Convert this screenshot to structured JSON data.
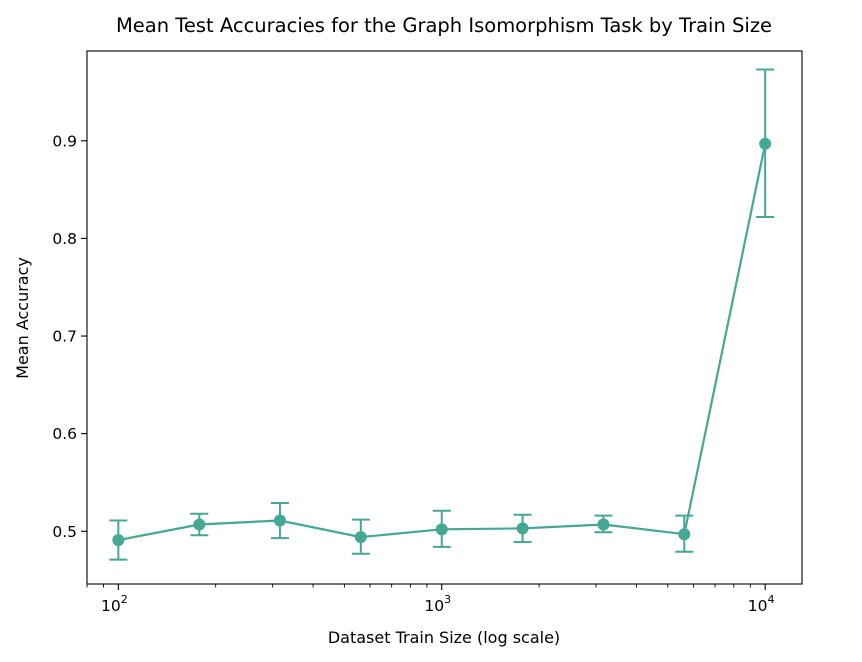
{
  "chart_data": {
    "type": "line",
    "title": "Mean Test Accuracies for the Graph Isomorphism Task by Train Size",
    "xlabel": "Dataset Train Size (log scale)",
    "ylabel": "Mean Accuracy",
    "x_scale": "log",
    "xlim": [
      80,
      13000
    ],
    "ylim": [
      0.446,
      0.992
    ],
    "x_ticks": [
      {
        "value": 100,
        "base": "10",
        "exp": "2"
      },
      {
        "value": 1000,
        "base": "10",
        "exp": "3"
      },
      {
        "value": 10000,
        "base": "10",
        "exp": "4"
      }
    ],
    "y_ticks": [
      {
        "value": 0.5,
        "label": "0.5"
      },
      {
        "value": 0.6,
        "label": "0.6"
      },
      {
        "value": 0.7,
        "label": "0.7"
      },
      {
        "value": 0.8,
        "label": "0.8"
      },
      {
        "value": 0.9,
        "label": "0.9"
      }
    ],
    "grid": false,
    "color": "#44a894",
    "series": [
      {
        "x": [
          100,
          178,
          316,
          562,
          1000,
          1778,
          3162,
          5623,
          10000
        ],
        "y": [
          0.491,
          0.507,
          0.511,
          0.494,
          0.502,
          0.503,
          0.507,
          0.497,
          0.897
        ],
        "err_low": [
          0.471,
          0.496,
          0.493,
          0.477,
          0.484,
          0.489,
          0.499,
          0.479,
          0.822
        ],
        "err_high": [
          0.511,
          0.518,
          0.529,
          0.512,
          0.521,
          0.517,
          0.516,
          0.516,
          0.973
        ]
      }
    ]
  }
}
